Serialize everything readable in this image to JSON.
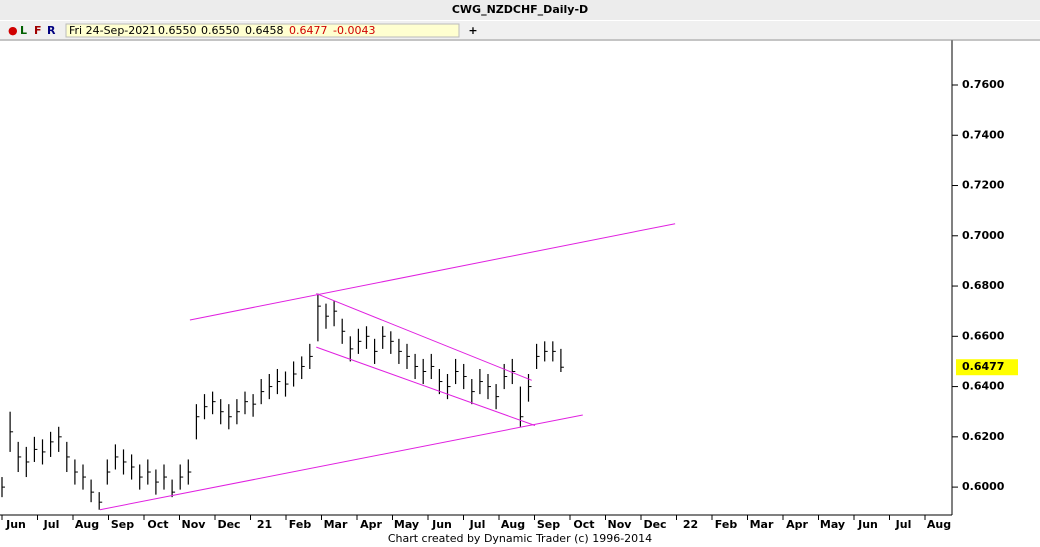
{
  "chart_data": {
    "type": "ohlc",
    "title": "CWG_NZDCHF_Daily-D",
    "toolbar": {
      "buttons": [
        "●",
        "L",
        "F",
        "R"
      ],
      "date": "Fri 24-Sep-2021",
      "open": "0.6550",
      "high": "0.6550",
      "low": "0.6458",
      "close": "0.6477",
      "change": "-0.0043",
      "add": "+"
    },
    "footer": "Chart created by Dynamic Trader  (c) 1996-2014",
    "last_price": {
      "value": 0.6477,
      "label": "0.6477"
    },
    "color": "#000000",
    "high": [
      0.604,
      0.63,
      0.618,
      0.616,
      0.62,
      0.619,
      0.622,
      0.624,
      0.618,
      0.611,
      0.609,
      0.603,
      0.598,
      0.611,
      0.617,
      0.615,
      0.613,
      0.609,
      0.611,
      0.607,
      0.609,
      0.603,
      0.609,
      0.611,
      0.633,
      0.637,
      0.638,
      0.635,
      0.633,
      0.635,
      0.638,
      0.637,
      0.643,
      0.645,
      0.647,
      0.646,
      0.65,
      0.652,
      0.657,
      0.677,
      0.673,
      0.674,
      0.667,
      0.66,
      0.663,
      0.664,
      0.659,
      0.664,
      0.662,
      0.659,
      0.657,
      0.653,
      0.651,
      0.653,
      0.647,
      0.645,
      0.651,
      0.649,
      0.643,
      0.647,
      0.645,
      0.641,
      0.649,
      0.651,
      0.64,
      0.645,
      0.657,
      0.658,
      0.658,
      0.655
    ],
    "low": [
      0.596,
      0.614,
      0.606,
      0.604,
      0.61,
      0.609,
      0.612,
      0.614,
      0.606,
      0.601,
      0.599,
      0.594,
      0.591,
      0.601,
      0.607,
      0.605,
      0.603,
      0.599,
      0.601,
      0.597,
      0.599,
      0.596,
      0.599,
      0.601,
      0.619,
      0.627,
      0.629,
      0.625,
      0.623,
      0.625,
      0.629,
      0.628,
      0.633,
      0.635,
      0.637,
      0.636,
      0.64,
      0.643,
      0.647,
      0.658,
      0.663,
      0.664,
      0.657,
      0.65,
      0.653,
      0.655,
      0.649,
      0.655,
      0.653,
      0.649,
      0.647,
      0.643,
      0.641,
      0.643,
      0.637,
      0.635,
      0.641,
      0.639,
      0.633,
      0.637,
      0.635,
      0.631,
      0.639,
      0.641,
      0.624,
      0.634,
      0.647,
      0.65,
      0.65,
      0.6458
    ],
    "close": [
      0.6,
      0.622,
      0.612,
      0.61,
      0.615,
      0.614,
      0.618,
      0.62,
      0.612,
      0.606,
      0.604,
      0.598,
      0.594,
      0.606,
      0.612,
      0.61,
      0.608,
      0.604,
      0.606,
      0.602,
      0.604,
      0.598,
      0.604,
      0.606,
      0.628,
      0.632,
      0.634,
      0.63,
      0.628,
      0.63,
      0.634,
      0.633,
      0.638,
      0.64,
      0.642,
      0.641,
      0.645,
      0.648,
      0.652,
      0.672,
      0.668,
      0.67,
      0.662,
      0.655,
      0.658,
      0.66,
      0.654,
      0.66,
      0.658,
      0.654,
      0.652,
      0.648,
      0.646,
      0.648,
      0.642,
      0.64,
      0.646,
      0.644,
      0.638,
      0.642,
      0.64,
      0.636,
      0.644,
      0.646,
      0.628,
      0.64,
      0.652,
      0.654,
      0.654,
      0.6477
    ],
    "trendlines": [
      {
        "color": "#e020e0",
        "x": [
          23.2,
          83.1
        ],
        "y": [
          0.6665,
          0.7048
        ]
      },
      {
        "color": "#e020e0",
        "x": [
          12.1,
          71.7
        ],
        "y": [
          0.591,
          0.6287
        ]
      },
      {
        "color": "#e020e0",
        "x": [
          38.8,
          65.4
        ],
        "y": [
          0.677,
          0.6425
        ]
      },
      {
        "color": "#e020e0",
        "x": [
          38.8,
          65.8
        ],
        "y": [
          0.6557,
          0.6245
        ]
      }
    ],
    "xticks": [
      "Jun",
      "Jul",
      "Aug",
      "Sep",
      "Oct",
      "Nov",
      "Dec",
      "21",
      "Feb",
      "Mar",
      "Apr",
      "May",
      "Jun",
      "Jul",
      "Aug",
      "Sep",
      "Oct",
      "Nov",
      "Dec",
      "22",
      "Feb",
      "Mar",
      "Apr",
      "May",
      "Jun",
      "Jul",
      "Aug"
    ],
    "ylim": [
      0.5889,
      0.7779
    ],
    "yticks": [
      {
        "value": 0.6,
        "label": "0.6000"
      },
      {
        "value": 0.62,
        "label": "0.6200"
      },
      {
        "value": 0.64,
        "label": "0.6400"
      },
      {
        "value": 0.66,
        "label": "0.6600"
      },
      {
        "value": 0.68,
        "label": "0.6800"
      },
      {
        "value": 0.7,
        "label": "0.7000"
      },
      {
        "value": 0.72,
        "label": "0.7200"
      },
      {
        "value": 0.74,
        "label": "0.7400"
      },
      {
        "value": 0.76,
        "label": "0.7600"
      }
    ]
  }
}
